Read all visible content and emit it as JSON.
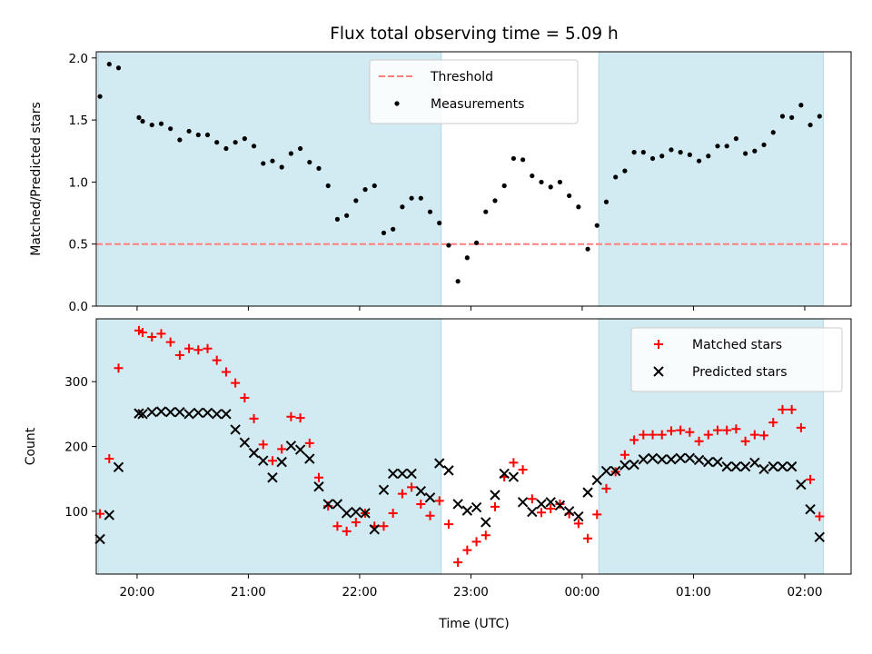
{
  "figure": {
    "title": "Flux total observing time = 5.09 h",
    "xlabel": "Time (UTC)",
    "colors": {
      "shade": "#add8e6",
      "threshold": "#ff7f7f",
      "measurements": "#000000",
      "matched": "#ff0000",
      "predicted": "#000000"
    }
  },
  "chart_data": [
    {
      "type": "scatter",
      "panel": "top",
      "ylabel": "Matched/Predicted stars",
      "xlim": [
        "19:38",
        "02:25"
      ],
      "ylim": [
        0,
        2.05
      ],
      "yticks": [
        "0.0",
        "0.5",
        "1.0",
        "1.5",
        "2.0"
      ],
      "xticks": [
        "20:00",
        "21:00",
        "22:00",
        "23:00",
        "00:00",
        "01:00",
        "02:00"
      ],
      "show_xtick_labels": false,
      "shaded_intervals": [
        [
          "19:39",
          "22:44"
        ],
        [
          "00:09",
          "02:10"
        ]
      ],
      "threshold": {
        "name": "Threshold",
        "value": 0.5,
        "style": "dashed"
      },
      "legend_position": "upper center",
      "series": [
        {
          "name": "Measurements",
          "marker": "dot",
          "x": [
            "19:40",
            "19:45",
            "19:50",
            "20:01",
            "20:03",
            "20:08",
            "20:13",
            "20:18",
            "20:23",
            "20:28",
            "20:33",
            "20:38",
            "20:43",
            "20:48",
            "20:53",
            "20:58",
            "21:03",
            "21:08",
            "21:13",
            "21:18",
            "21:23",
            "21:28",
            "21:33",
            "21:38",
            "21:43",
            "21:48",
            "21:53",
            "21:58",
            "22:03",
            "22:08",
            "22:13",
            "22:18",
            "22:23",
            "22:28",
            "22:33",
            "22:38",
            "22:43",
            "22:48",
            "22:53",
            "22:58",
            "23:03",
            "23:08",
            "23:13",
            "23:18",
            "23:23",
            "23:28",
            "23:33",
            "23:38",
            "23:43",
            "23:48",
            "23:53",
            "23:58",
            "00:03",
            "00:08",
            "00:13",
            "00:18",
            "00:23",
            "00:28",
            "00:33",
            "00:38",
            "00:43",
            "00:48",
            "00:53",
            "00:58",
            "01:03",
            "01:08",
            "01:13",
            "01:18",
            "01:23",
            "01:28",
            "01:33",
            "01:38",
            "01:43",
            "01:48",
            "01:53",
            "01:58",
            "02:03",
            "02:08"
          ],
          "y": [
            1.69,
            1.95,
            1.92,
            1.52,
            1.49,
            1.46,
            1.47,
            1.43,
            1.34,
            1.41,
            1.38,
            1.38,
            1.32,
            1.27,
            1.32,
            1.35,
            1.29,
            1.15,
            1.17,
            1.12,
            1.23,
            1.27,
            1.16,
            1.11,
            0.97,
            0.7,
            0.73,
            0.85,
            0.94,
            0.97,
            0.59,
            0.62,
            0.8,
            0.87,
            0.87,
            0.76,
            0.67,
            0.49,
            0.2,
            0.39,
            0.51,
            0.76,
            0.85,
            0.97,
            1.19,
            1.18,
            1.05,
            1.0,
            0.96,
            1.0,
            0.89,
            0.8,
            0.46,
            0.65,
            0.84,
            1.04,
            1.09,
            1.24,
            1.24,
            1.19,
            1.21,
            1.26,
            1.24,
            1.22,
            1.17,
            1.21,
            1.29,
            1.29,
            1.35,
            1.23,
            1.25,
            1.3,
            1.4,
            1.53,
            1.52,
            1.62,
            1.46,
            1.53
          ]
        }
      ]
    },
    {
      "type": "scatter",
      "panel": "bottom",
      "ylabel": "Count",
      "xlim": [
        "19:38",
        "02:25"
      ],
      "ylim": [
        3,
        397
      ],
      "yticks": [
        "100",
        "200",
        "300"
      ],
      "xticks": [
        "20:00",
        "21:00",
        "22:00",
        "23:00",
        "00:00",
        "01:00",
        "02:00"
      ],
      "shaded_intervals": [
        [
          "19:39",
          "22:44"
        ],
        [
          "00:09",
          "02:10"
        ]
      ],
      "legend_position": "upper right",
      "series": [
        {
          "name": "Matched stars",
          "marker": "plus",
          "x": [
            "19:40",
            "19:45",
            "19:50",
            "20:01",
            "20:03",
            "20:08",
            "20:13",
            "20:18",
            "20:23",
            "20:28",
            "20:33",
            "20:38",
            "20:43",
            "20:48",
            "20:53",
            "20:58",
            "21:03",
            "21:08",
            "21:13",
            "21:18",
            "21:23",
            "21:28",
            "21:33",
            "21:38",
            "21:43",
            "21:48",
            "21:53",
            "21:58",
            "22:03",
            "22:08",
            "22:13",
            "22:18",
            "22:23",
            "22:28",
            "22:33",
            "22:38",
            "22:43",
            "22:48",
            "22:53",
            "22:58",
            "23:03",
            "23:08",
            "23:13",
            "23:18",
            "23:23",
            "23:28",
            "23:33",
            "23:38",
            "23:43",
            "23:48",
            "23:53",
            "23:58",
            "00:03",
            "00:08",
            "00:13",
            "00:18",
            "00:23",
            "00:28",
            "00:33",
            "00:38",
            "00:43",
            "00:48",
            "00:53",
            "00:58",
            "01:03",
            "01:08",
            "01:13",
            "01:18",
            "01:23",
            "01:28",
            "01:33",
            "01:38",
            "01:43",
            "01:48",
            "01:53",
            "01:58",
            "02:03",
            "02:08"
          ],
          "y": [
            96,
            181,
            321,
            379,
            376,
            369,
            374,
            361,
            341,
            351,
            349,
            351,
            333,
            315,
            298,
            275,
            243,
            203,
            178,
            196,
            246,
            244,
            205,
            152,
            108,
            77,
            69,
            83,
            97,
            77,
            77,
            97,
            127,
            137,
            111,
            93,
            116,
            80,
            21,
            40,
            53,
            63,
            107,
            153,
            175,
            164,
            119,
            98,
            104,
            111,
            96,
            81,
            58,
            95,
            135,
            161,
            187,
            210,
            218,
            218,
            218,
            224,
            225,
            222,
            208,
            218,
            225,
            225,
            227,
            208,
            218,
            217,
            237,
            257,
            257,
            229,
            149,
            92
          ]
        },
        {
          "name": "Predicted stars",
          "marker": "x",
          "x": [
            "19:40",
            "19:45",
            "19:50",
            "20:01",
            "20:03",
            "20:08",
            "20:13",
            "20:18",
            "20:23",
            "20:28",
            "20:33",
            "20:38",
            "20:43",
            "20:48",
            "20:53",
            "20:58",
            "21:03",
            "21:08",
            "21:13",
            "21:18",
            "21:23",
            "21:28",
            "21:33",
            "21:38",
            "21:43",
            "21:48",
            "21:53",
            "21:58",
            "22:03",
            "22:08",
            "22:13",
            "22:18",
            "22:23",
            "22:28",
            "22:33",
            "22:38",
            "22:43",
            "22:48",
            "22:53",
            "22:58",
            "23:03",
            "23:08",
            "23:13",
            "23:18",
            "23:23",
            "23:28",
            "23:33",
            "23:38",
            "23:43",
            "23:48",
            "23:53",
            "23:58",
            "00:03",
            "00:08",
            "00:13",
            "00:18",
            "00:23",
            "00:28",
            "00:33",
            "00:38",
            "00:43",
            "00:48",
            "00:53",
            "00:58",
            "01:03",
            "01:08",
            "01:13",
            "01:18",
            "01:23",
            "01:28",
            "01:33",
            "01:38",
            "01:43",
            "01:48",
            "01:53",
            "01:58",
            "02:03",
            "02:08"
          ],
          "y": [
            57,
            94,
            168,
            251,
            250,
            253,
            254,
            253,
            253,
            250,
            252,
            252,
            250,
            250,
            226,
            206,
            190,
            178,
            152,
            176,
            201,
            195,
            181,
            138,
            111,
            111,
            97,
            99,
            97,
            72,
            133,
            158,
            158,
            158,
            131,
            121,
            174,
            163,
            111,
            101,
            106,
            83,
            125,
            158,
            153,
            114,
            99,
            111,
            114,
            109,
            100,
            92,
            129,
            148,
            162,
            162,
            171,
            172,
            180,
            182,
            180,
            180,
            182,
            182,
            179,
            176,
            176,
            169,
            169,
            169,
            175,
            165,
            169,
            169,
            169,
            141,
            103,
            60
          ]
        }
      ]
    }
  ]
}
